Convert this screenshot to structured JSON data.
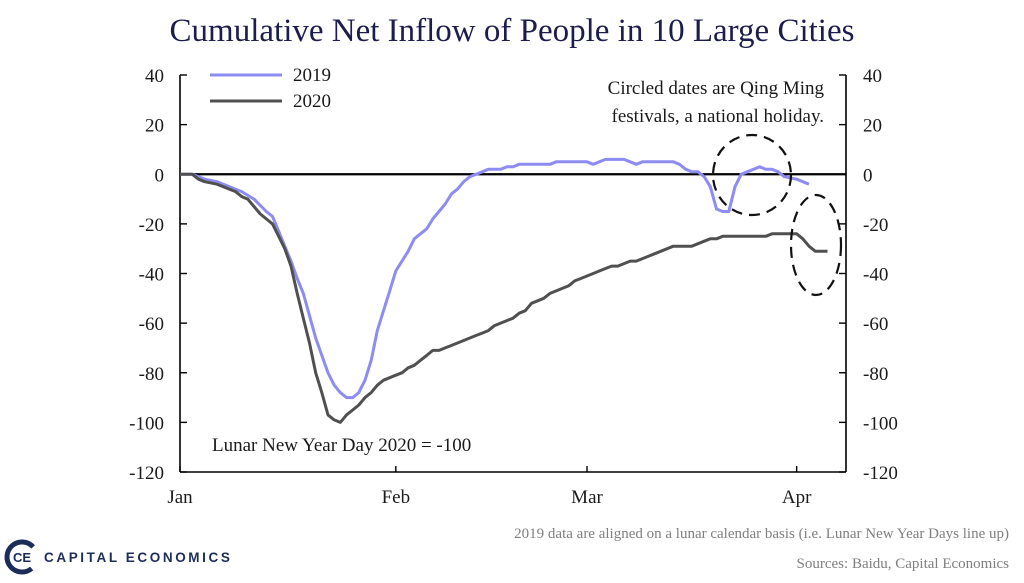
{
  "chart_data": {
    "type": "line",
    "title": "Cumulative Net Inflow of People in 10 Large Cities",
    "ylim": [
      -120,
      40
    ],
    "yticks": [
      40,
      20,
      0,
      -20,
      -40,
      -60,
      -80,
      -100,
      -120
    ],
    "ytick_labels": [
      "40",
      "20",
      "0",
      "-20",
      "-40",
      "-60",
      "-80",
      "-100",
      "-120"
    ],
    "xlim": [
      0,
      108
    ],
    "x_unit": "days since Jan 1",
    "xticks": [
      {
        "label": "Jan",
        "value": 0
      },
      {
        "label": "Feb",
        "value": 35
      },
      {
        "label": "Mar",
        "value": 66
      },
      {
        "label": "Apr",
        "value": 100
      }
    ],
    "series": [
      {
        "name": "2019",
        "color": "#8c8cf2",
        "points": [
          [
            0,
            0
          ],
          [
            2,
            0
          ],
          [
            4,
            -2
          ],
          [
            6,
            -3
          ],
          [
            8,
            -5
          ],
          [
            10,
            -7
          ],
          [
            12,
            -10
          ],
          [
            14,
            -15
          ],
          [
            15,
            -17
          ],
          [
            16,
            -23
          ],
          [
            17,
            -29
          ],
          [
            18,
            -35
          ],
          [
            19,
            -42
          ],
          [
            20,
            -48
          ],
          [
            21,
            -57
          ],
          [
            22,
            -66
          ],
          [
            23,
            -73
          ],
          [
            24,
            -80
          ],
          [
            25,
            -85
          ],
          [
            26,
            -88
          ],
          [
            27,
            -90
          ],
          [
            28,
            -90
          ],
          [
            29,
            -88
          ],
          [
            30,
            -83
          ],
          [
            31,
            -75
          ],
          [
            32,
            -63
          ],
          [
            33,
            -55
          ],
          [
            34,
            -47
          ],
          [
            35,
            -39
          ],
          [
            36,
            -35
          ],
          [
            37,
            -31
          ],
          [
            38,
            -26
          ],
          [
            39,
            -24
          ],
          [
            40,
            -22
          ],
          [
            41,
            -18
          ],
          [
            42,
            -15
          ],
          [
            43,
            -12
          ],
          [
            44,
            -8
          ],
          [
            45,
            -6
          ],
          [
            46,
            -3
          ],
          [
            47,
            -1
          ],
          [
            48,
            0
          ],
          [
            49,
            1
          ],
          [
            50,
            2
          ],
          [
            52,
            2
          ],
          [
            53,
            3
          ],
          [
            54,
            3
          ],
          [
            55,
            4
          ],
          [
            60,
            4
          ],
          [
            61,
            5
          ],
          [
            66,
            5
          ],
          [
            67,
            4
          ],
          [
            68,
            5
          ],
          [
            69,
            6
          ],
          [
            72,
            6
          ],
          [
            73,
            5
          ],
          [
            74,
            4
          ],
          [
            75,
            5
          ],
          [
            80,
            5
          ],
          [
            81,
            4
          ],
          [
            82,
            2
          ],
          [
            83,
            1
          ],
          [
            84,
            1
          ],
          [
            85,
            -1
          ],
          [
            86,
            -5
          ],
          [
            87,
            -14
          ],
          [
            88,
            -15
          ],
          [
            89,
            -15
          ],
          [
            90,
            -5
          ],
          [
            91,
            0
          ],
          [
            92,
            1
          ],
          [
            93,
            2
          ],
          [
            94,
            3
          ],
          [
            95,
            2
          ],
          [
            96,
            2
          ],
          [
            97,
            1
          ],
          [
            98,
            -1
          ],
          [
            100,
            -2
          ],
          [
            101,
            -3
          ],
          [
            102,
            -4
          ]
        ]
      },
      {
        "name": "2020",
        "color": "#505050",
        "points": [
          [
            0,
            0
          ],
          [
            2,
            0
          ],
          [
            3,
            -2
          ],
          [
            4,
            -3
          ],
          [
            6,
            -4
          ],
          [
            8,
            -6
          ],
          [
            9,
            -7
          ],
          [
            10,
            -9
          ],
          [
            11,
            -10
          ],
          [
            12,
            -13
          ],
          [
            13,
            -16
          ],
          [
            14,
            -18
          ],
          [
            15,
            -20
          ],
          [
            16,
            -25
          ],
          [
            17,
            -30
          ],
          [
            18,
            -37
          ],
          [
            19,
            -48
          ],
          [
            20,
            -58
          ],
          [
            21,
            -68
          ],
          [
            22,
            -80
          ],
          [
            23,
            -88
          ],
          [
            24,
            -97
          ],
          [
            25,
            -99
          ],
          [
            26,
            -100
          ],
          [
            27,
            -97
          ],
          [
            28,
            -95
          ],
          [
            29,
            -93
          ],
          [
            30,
            -90
          ],
          [
            31,
            -88
          ],
          [
            32,
            -85
          ],
          [
            33,
            -83
          ],
          [
            34,
            -82
          ],
          [
            35,
            -81
          ],
          [
            36,
            -80
          ],
          [
            37,
            -78
          ],
          [
            38,
            -77
          ],
          [
            39,
            -75
          ],
          [
            40,
            -73
          ],
          [
            41,
            -71
          ],
          [
            42,
            -71
          ],
          [
            43,
            -70
          ],
          [
            44,
            -69
          ],
          [
            45,
            -68
          ],
          [
            46,
            -67
          ],
          [
            48,
            -65
          ],
          [
            49,
            -64
          ],
          [
            50,
            -63
          ],
          [
            51,
            -61
          ],
          [
            52,
            -60
          ],
          [
            54,
            -58
          ],
          [
            55,
            -56
          ],
          [
            56,
            -55
          ],
          [
            57,
            -52
          ],
          [
            58,
            -51
          ],
          [
            59,
            -50
          ],
          [
            60,
            -48
          ],
          [
            61,
            -47
          ],
          [
            62,
            -46
          ],
          [
            63,
            -45
          ],
          [
            64,
            -43
          ],
          [
            65,
            -42
          ],
          [
            66,
            -41
          ],
          [
            67,
            -40
          ],
          [
            68,
            -39
          ],
          [
            69,
            -38
          ],
          [
            70,
            -37
          ],
          [
            71,
            -37
          ],
          [
            72,
            -36
          ],
          [
            73,
            -35
          ],
          [
            74,
            -35
          ],
          [
            75,
            -34
          ],
          [
            76,
            -33
          ],
          [
            77,
            -32
          ],
          [
            78,
            -31
          ],
          [
            79,
            -30
          ],
          [
            80,
            -29
          ],
          [
            83,
            -29
          ],
          [
            84,
            -28
          ],
          [
            85,
            -27
          ],
          [
            86,
            -26
          ],
          [
            87,
            -26
          ],
          [
            88,
            -25
          ],
          [
            95,
            -25
          ],
          [
            96,
            -24
          ],
          [
            98,
            -24
          ],
          [
            99,
            -24
          ],
          [
            100,
            -24
          ],
          [
            101,
            -26
          ],
          [
            102,
            -29
          ],
          [
            103,
            -31
          ],
          [
            104,
            -31
          ],
          [
            105,
            -31
          ]
        ]
      }
    ],
    "legend": [
      "2019",
      "2020"
    ],
    "legend_position": "top-left",
    "annotations": {
      "holiday_line1": "Circled dates are Qing Ming",
      "holiday_line2": "festivals,  a national  holiday.",
      "lunar_note": "Lunar  New Year Day  2020  = -100"
    },
    "footnote": "2019 data are aligned on a lunar calendar basis (i.e. Lunar New Year Days line up)",
    "sources": "Sources: Baidu, Capital Economics"
  },
  "branding": {
    "name": "CAPITAL ECONOMICS",
    "logo_letters": "CE",
    "color": "#1c2d5a"
  }
}
